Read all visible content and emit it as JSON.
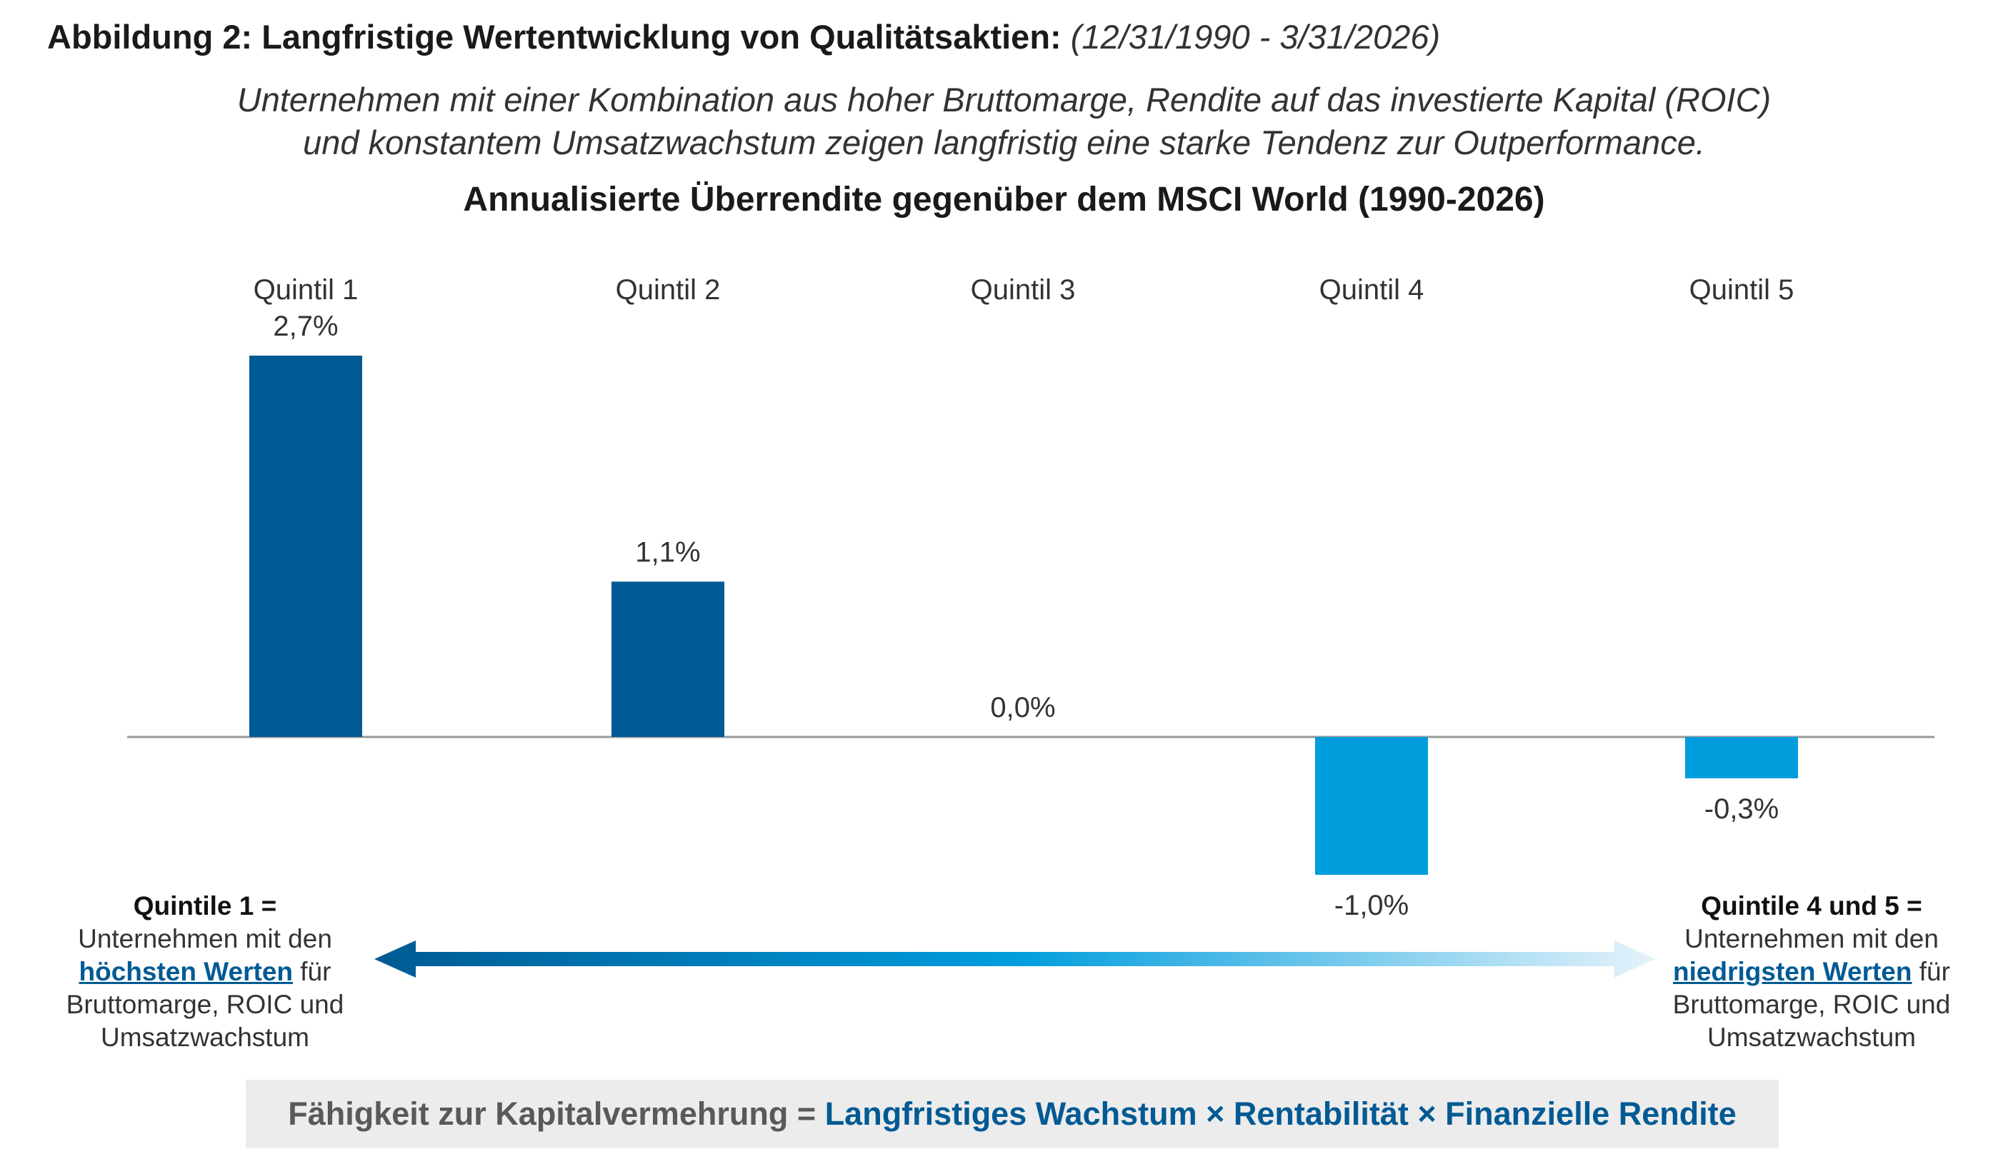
{
  "figure": {
    "title_lead": "Abbildung 2: Langfristige Wertentwicklung von Qualitätsaktien:",
    "title_range": "(12/31/1990 - 3/31/2026)",
    "subtitle_line1": "Unternehmen mit einer Kombination aus hoher Bruttomarge, Rendite auf das investierte Kapital (ROIC)",
    "subtitle_line2": "und konstantem Umsatzwachstum zeigen langfristig eine starke Tendenz zur Outperformance."
  },
  "chart_data": {
    "type": "bar",
    "title": "Annualisierte Überrendite gegenüber dem MSCI World (1990-2026)",
    "categories": [
      "Quintil 1",
      "Quintil 2",
      "Quintil 3",
      "Quintil 4",
      "Quintil 5"
    ],
    "values": [
      2.7,
      1.1,
      0.0,
      -1.0,
      -0.3
    ],
    "value_labels": [
      "2,7%",
      "1,1%",
      "0,0%",
      "-1,0%",
      "-0,3%"
    ],
    "unit": "%",
    "ylim": [
      -1.0,
      2.7
    ],
    "grid": false,
    "legend": "none",
    "colors": {
      "positive": "#005a93",
      "negative": "#009ddd",
      "axis": "#9a9a9a"
    }
  },
  "annotations": {
    "left": {
      "head": "Quintile 1 =",
      "line1": "Unternehmen mit den",
      "highlight": "höchsten Werten",
      "after": "für",
      "line3": "Bruttomarge, ROIC und",
      "line4": "Umsatzwachstum"
    },
    "right": {
      "head": "Quintile 4 und 5 =",
      "line1": "Unternehmen mit den",
      "highlight": "niedrigsten Werten",
      "after": "für",
      "line3": "Bruttomarge, ROIC und",
      "line4": "Umsatzwachstum"
    },
    "arrow_colors": {
      "start": "#005a93",
      "mid": "#009ddd",
      "end": "#e6f3fb"
    }
  },
  "formula": {
    "lhs": "Fähigkeit zur Kapitalvermehrung =",
    "rhs": "Langfristiges Wachstum × Rentabilität × Finanzielle Rendite"
  }
}
